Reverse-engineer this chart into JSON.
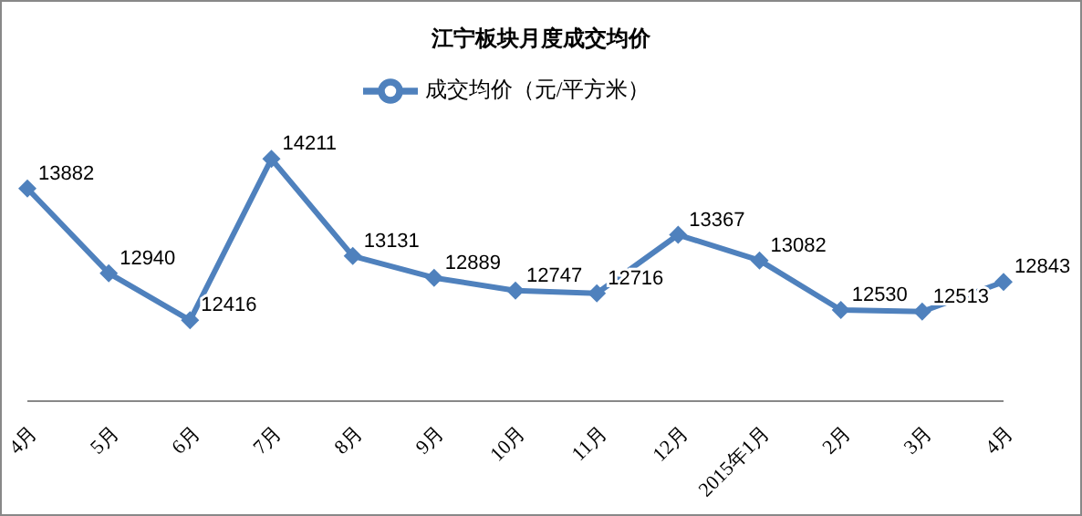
{
  "chart_data": {
    "type": "line",
    "title": "江宁板块月度成交均价",
    "categories": [
      "4月",
      "5月",
      "6月",
      "7月",
      "8月",
      "9月",
      "10月",
      "11月",
      "12月",
      "2015年1月",
      "2月",
      "3月",
      "4月"
    ],
    "series": [
      {
        "name": "成交均价（元/平方米）",
        "color": "#4f81bd",
        "values": [
          13882,
          12940,
          12416,
          14211,
          13131,
          12889,
          12747,
          12716,
          13367,
          13082,
          12530,
          12513,
          12843
        ]
      }
    ],
    "data_labels": true,
    "legend": "top",
    "marker": "diamond",
    "line_style": "solid"
  }
}
